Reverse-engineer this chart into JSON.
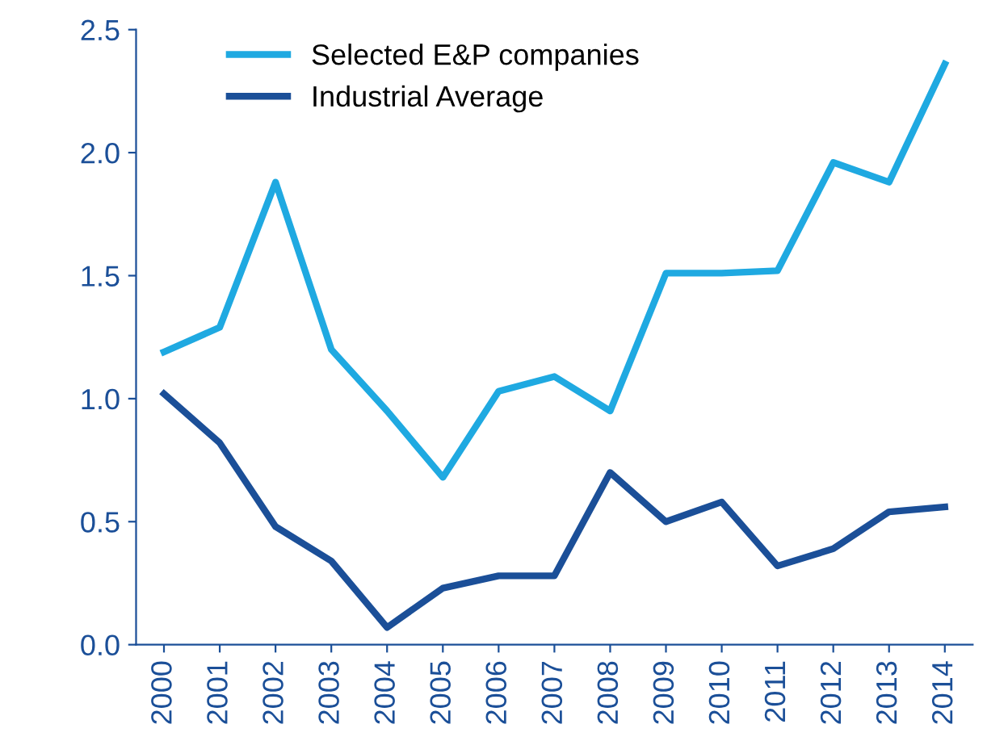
{
  "chart_data": {
    "type": "line",
    "categories": [
      "2000",
      "2001",
      "2002",
      "2003",
      "2004",
      "2005",
      "2006",
      "2007",
      "2008",
      "2009",
      "2010",
      "2011",
      "2012",
      "2013",
      "2014"
    ],
    "series": [
      {
        "name": "Selected E&P companies",
        "color": "#1fa9e1",
        "values": [
          1.19,
          1.29,
          1.88,
          1.2,
          0.95,
          0.68,
          1.03,
          1.09,
          0.95,
          1.51,
          1.51,
          1.52,
          1.96,
          1.88,
          2.36
        ]
      },
      {
        "name": "Industrial Average",
        "color": "#1b4f98",
        "values": [
          1.02,
          0.82,
          0.48,
          0.34,
          0.07,
          0.23,
          0.28,
          0.28,
          0.7,
          0.5,
          0.58,
          0.32,
          0.39,
          0.54,
          0.56
        ]
      }
    ],
    "ylim": [
      0,
      2.5
    ],
    "yticks": [
      {
        "value": 0,
        "label": "0.0"
      },
      {
        "value": 0.5,
        "label": "0.5"
      },
      {
        "value": 1,
        "label": "1.0"
      },
      {
        "value": 1.5,
        "label": "1.5"
      },
      {
        "value": 2,
        "label": "2.0"
      },
      {
        "value": 2.5,
        "label": "2.5"
      }
    ],
    "grid": false,
    "legend": "top left",
    "marker": "none",
    "line_style": "solid"
  }
}
